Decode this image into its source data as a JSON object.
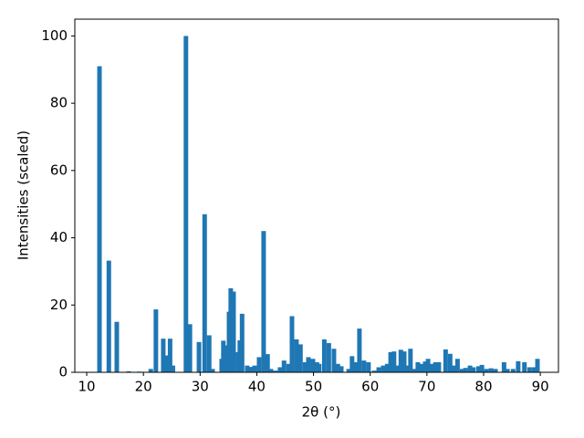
{
  "chart_data": {
    "type": "bar",
    "x_label": "2θ (°)",
    "y_label": "Intensities (scaled)",
    "color": "#1f77b4",
    "x": [
      12.25,
      13.9,
      15.3,
      17.4,
      19.3,
      21.3,
      22.2,
      23.5,
      24.2,
      24.7,
      25.2,
      27.5,
      28.2,
      29.8,
      30.8,
      31.6,
      32.2,
      33.8,
      34.1,
      34.8,
      35.1,
      35.4,
      35.9,
      36.7,
      37.0,
      37.4,
      38.3,
      39.0,
      39.6,
      40.4,
      41.2,
      41.9,
      42.5,
      43.3,
      44.1,
      44.8,
      45.6,
      46.2,
      47.0,
      47.7,
      48.5,
      49.1,
      49.9,
      50.6,
      51.0,
      51.9,
      52.7,
      53.6,
      54.3,
      54.9,
      56.2,
      56.8,
      57.5,
      58.1,
      58.9,
      59.7,
      60.7,
      61.5,
      62.3,
      63.0,
      63.6,
      64.2,
      64.9,
      65.4,
      66.0,
      66.5,
      67.1,
      67.8,
      68.4,
      69.1,
      69.7,
      70.2,
      70.8,
      71.5,
      72.1,
      73.3,
      74.1,
      74.7,
      75.4,
      76.2,
      76.8,
      77.6,
      78.2,
      79.1,
      79.7,
      80.5,
      81.3,
      82.1,
      83.6,
      84.2,
      85.2,
      86.1,
      87.2,
      88.1,
      88.9,
      89.5
    ],
    "values": [
      91,
      33.2,
      15,
      0.3,
      0.2,
      1,
      18.7,
      10,
      5,
      10,
      2,
      100,
      14.3,
      9,
      47,
      11,
      1,
      4,
      9.4,
      8,
      18,
      25,
      24,
      6,
      9.5,
      17.4,
      2,
      1.6,
      2,
      4.5,
      42,
      5.4,
      1,
      0.5,
      1.5,
      3.5,
      2.5,
      16.7,
      9.8,
      8.3,
      3,
      4.5,
      4,
      3,
      2.5,
      9.8,
      8.7,
      7,
      2.5,
      1.8,
      1,
      4.8,
      3,
      13,
      3.5,
      3,
      0.5,
      1.5,
      2,
      2.5,
      6,
      6.2,
      2,
      6.7,
      6.2,
      2,
      7,
      1,
      3,
      2.5,
      3.2,
      4,
      2.5,
      3,
      3,
      6.8,
      5.5,
      2,
      4,
      1,
      1.3,
      2,
      1.5,
      1.8,
      2.2,
      1,
      1.2,
      1,
      3,
      1,
      1,
      3.3,
      3,
      1.5,
      1.5,
      4
    ],
    "xlim": [
      7.9,
      93.2
    ],
    "ylim": [
      0,
      105
    ],
    "xticks": [
      10,
      20,
      30,
      40,
      50,
      60,
      70,
      80,
      90
    ],
    "yticks": [
      0,
      20,
      40,
      60,
      80,
      100
    ]
  }
}
